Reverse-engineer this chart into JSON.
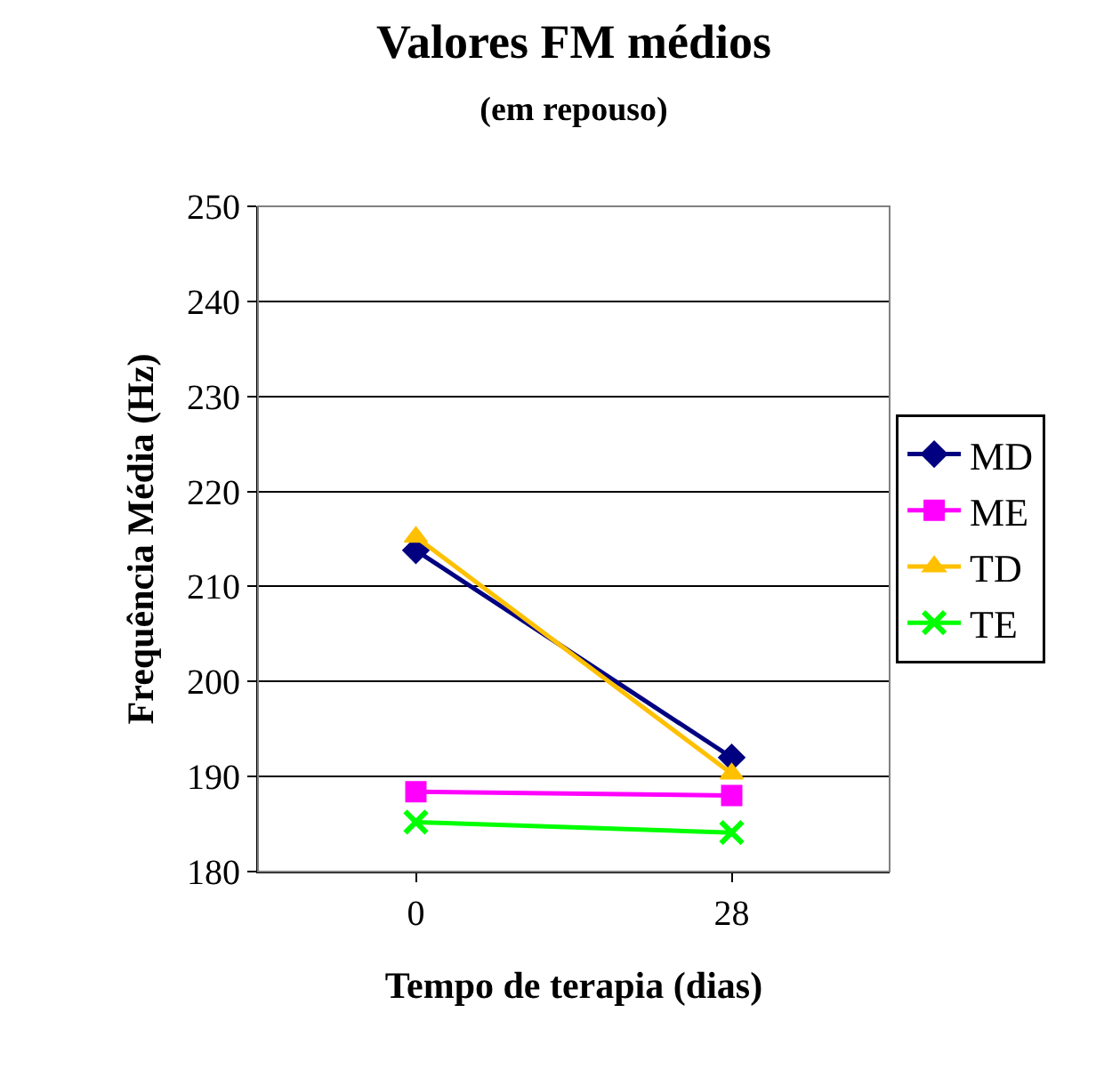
{
  "chart_data": {
    "type": "line",
    "title": "Valores FM médios",
    "subtitle": "(em repouso)",
    "xlabel": "Tempo de terapia (dias)",
    "ylabel": "Frequência Média (Hz)",
    "categories": [
      "0",
      "28"
    ],
    "series": [
      {
        "name": "MD",
        "color": "#000080",
        "marker": "diamond",
        "values": [
          213.8,
          192.0
        ]
      },
      {
        "name": "ME",
        "color": "#ff00ff",
        "marker": "square",
        "values": [
          188.4,
          188.0
        ]
      },
      {
        "name": "TD",
        "color": "#ffc000",
        "marker": "triangle",
        "values": [
          215.2,
          190.3
        ]
      },
      {
        "name": "TE",
        "color": "#00ff00",
        "marker": "cross",
        "values": [
          185.2,
          184.1
        ]
      }
    ],
    "ylim": [
      180,
      250
    ],
    "yticks": [
      180,
      190,
      200,
      210,
      220,
      230,
      240,
      250
    ],
    "grid": "y",
    "legend": "right"
  }
}
